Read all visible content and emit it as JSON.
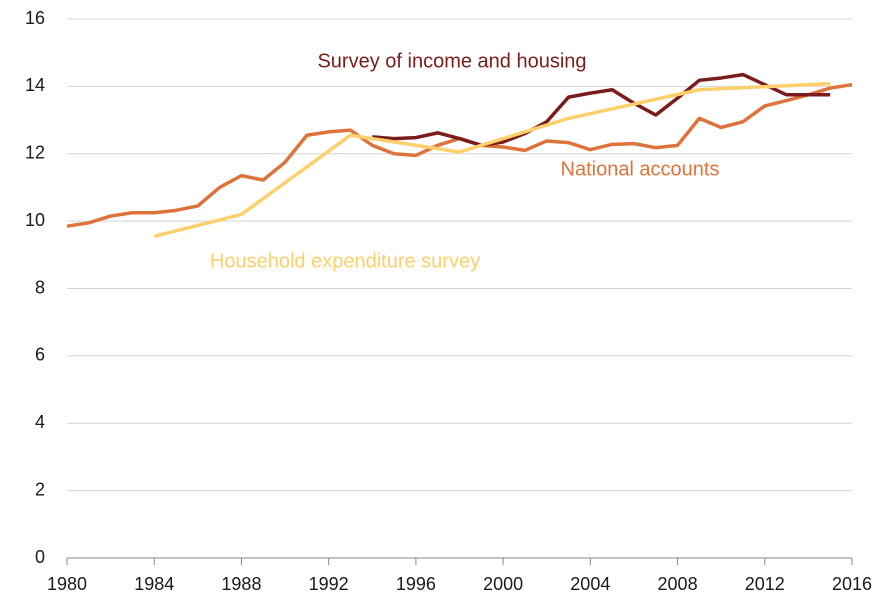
{
  "chart_data": {
    "type": "line",
    "series": [
      {
        "name": "National accounts",
        "color": "#dd733a",
        "x": [
          1980,
          1981,
          1982,
          1983,
          1984,
          1985,
          1986,
          1987,
          1988,
          1989,
          1990,
          1991,
          1992,
          1993,
          1994,
          1995,
          1996,
          1997,
          1998,
          1999,
          2000,
          2001,
          2002,
          2003,
          2004,
          2005,
          2006,
          2007,
          2008,
          2009,
          2010,
          2011,
          2012,
          2013,
          2014,
          2015,
          2016
        ],
        "values": [
          9.85,
          9.95,
          10.15,
          10.25,
          10.25,
          10.32,
          10.45,
          11.0,
          11.35,
          11.22,
          11.75,
          12.55,
          12.65,
          12.7,
          12.25,
          12.0,
          11.95,
          12.25,
          12.45,
          12.25,
          12.2,
          12.1,
          12.38,
          12.33,
          12.12,
          12.28,
          12.3,
          12.18,
          12.25,
          13.05,
          12.78,
          12.95,
          13.42,
          13.58,
          13.75,
          13.95,
          14.05
        ]
      },
      {
        "name": "Survey of income and housing",
        "color": "#7a1c1c",
        "x": [
          1994,
          1995,
          1996,
          1997,
          1998,
          1999,
          2000,
          2001,
          2002,
          2003,
          2004,
          2005,
          2006,
          2007,
          2008,
          2009,
          2010,
          2011,
          2012,
          2013,
          2014,
          2015
        ],
        "values": [
          12.5,
          12.45,
          12.48,
          12.62,
          12.45,
          12.25,
          12.35,
          12.6,
          12.95,
          13.68,
          13.8,
          13.9,
          13.5,
          13.15,
          13.65,
          14.18,
          14.25,
          14.35,
          14.05,
          13.75,
          13.75,
          13.75
        ]
      },
      {
        "name": "Household expenditure survey",
        "color": "#fdd06b",
        "x": [
          1984,
          1988,
          1993,
          1998,
          2003,
          2009,
          2015
        ],
        "values": [
          9.55,
          10.2,
          12.55,
          12.05,
          13.05,
          13.9,
          14.08
        ]
      }
    ],
    "xlim": [
      1980,
      2016
    ],
    "xticks": [
      1980,
      1984,
      1988,
      1992,
      1996,
      2000,
      2004,
      2008,
      2012,
      2016
    ],
    "ylim": [
      0,
      16
    ],
    "yticks": [
      0,
      2,
      4,
      6,
      8,
      10,
      12,
      14,
      16
    ],
    "grid": true
  }
}
